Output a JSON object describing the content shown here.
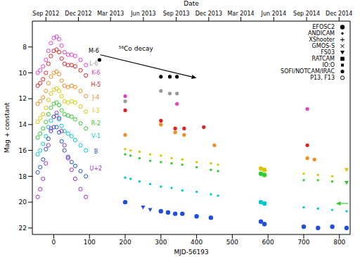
{
  "chart_data": {
    "type": "scatter",
    "xlabel": "MJD-56193",
    "ylabel": "Mag + constant",
    "x2label": "Date",
    "xlim": [
      -60,
      830
    ],
    "xticks": [
      0,
      100,
      200,
      300,
      400,
      500,
      600,
      700,
      800
    ],
    "ylim": [
      22.5,
      6
    ],
    "yticks": [
      8,
      10,
      12,
      14,
      16,
      18,
      20,
      22
    ],
    "x2ticks": [
      {
        "value": -22,
        "label": "Sep 2012"
      },
      {
        "value": 69,
        "label": "Dec 2012"
      },
      {
        "value": 159,
        "label": "Mar 2013"
      },
      {
        "value": 251,
        "label": "Jun 2013"
      },
      {
        "value": 343,
        "label": "Sep 2013"
      },
      {
        "value": 434,
        "label": "Dec 2013"
      },
      {
        "value": 524,
        "label": "Mar 2014"
      },
      {
        "value": 616,
        "label": "Jun 2014"
      },
      {
        "value": 708,
        "label": "Sep 2014"
      },
      {
        "value": 799,
        "label": "Dec 2014"
      }
    ],
    "legend": "upper right",
    "instruments": [
      {
        "name": "EFOSC2",
        "marker": "circle"
      },
      {
        "name": "ANDICAM",
        "marker": "dot"
      },
      {
        "name": "XShooter",
        "marker": "plus"
      },
      {
        "name": "GMOS-S",
        "marker": "cross"
      },
      {
        "name": "FS03",
        "marker": "triangle_down"
      },
      {
        "name": "RATCAM",
        "marker": "square"
      },
      {
        "name": "IO:O",
        "marker": "small_square"
      },
      {
        "name": "SOFI/NOTCAM/IRAC",
        "marker": "small_circle"
      },
      {
        "name": "P13, F13",
        "marker": "open_circle"
      }
    ],
    "annotations": [
      {
        "text": "⁵⁶Co decay",
        "x": 230,
        "y": 8.1
      }
    ],
    "arrows": [
      {
        "x1": 130,
        "y1": 8.6,
        "x2": 400,
        "y2": 10.4,
        "color": "#000000"
      },
      {
        "x1": 825,
        "y1": 20.1,
        "x2": 790,
        "y2": 20.1,
        "color": "#2ecc2e"
      }
    ],
    "series": [
      {
        "name": "M-6",
        "color": "#000000",
        "label_at": [
          112,
          8.3
        ],
        "x": [
          128,
          300,
          325,
          345
        ],
        "y": [
          9.0,
          10.3,
          10.3,
          10.3
        ],
        "instrument": [
          "SOFI/NOTCAM/IRAC",
          "SOFI/NOTCAM/IRAC",
          "SOFI/NOTCAM/IRAC",
          "SOFI/NOTCAM/IRAC"
        ]
      },
      {
        "name": "L-6",
        "color": "#999999",
        "label_at": [
          112,
          9.3
        ],
        "x": [
          200,
          300,
          325,
          345
        ],
        "y": [
          12.2,
          11.4,
          11.6,
          11.6
        ],
        "instrument": [
          "SOFI/NOTCAM/IRAC",
          "SOFI/NOTCAM/IRAC",
          "SOFI/NOTCAM/IRAC",
          "SOFI/NOTCAM/IRAC"
        ]
      },
      {
        "name": "K-6",
        "color": "#e23ecb",
        "label_at": [
          118,
          10.0
        ],
        "x": [
          -45,
          -38,
          -30,
          -22,
          -15,
          -8,
          0,
          8,
          15,
          22,
          30,
          40,
          50,
          60,
          75,
          90,
          200,
          345,
          710
        ],
        "y": [
          10.0,
          9.8,
          9.5,
          9.0,
          8.3,
          7.7,
          7.3,
          7.2,
          7.4,
          7.9,
          8.4,
          8.6,
          8.6,
          8.7,
          9.0,
          9.4,
          11.8,
          12.4,
          12.8
        ],
        "instrument": [
          "P13, F13",
          "P13, F13",
          "P13, F13",
          "P13, F13",
          "P13, F13",
          "P13, F13",
          "P13, F13",
          "P13, F13",
          "P13, F13",
          "P13, F13",
          "P13, F13",
          "P13, F13",
          "P13, F13",
          "P13, F13",
          "P13, F13",
          "P13, F13",
          "SOFI/NOTCAM/IRAC",
          "SOFI/NOTCAM/IRAC",
          "SOFI/NOTCAM/IRAC"
        ]
      },
      {
        "name": "H-5",
        "color": "#e02020",
        "label_at": [
          118,
          10.9
        ],
        "x": [
          -45,
          -38,
          -30,
          -22,
          -15,
          -8,
          0,
          8,
          15,
          22,
          30,
          40,
          50,
          60,
          75,
          90,
          200,
          300,
          340,
          365,
          420,
          710
        ],
        "y": [
          11.0,
          10.8,
          10.5,
          10.0,
          9.3,
          8.7,
          8.3,
          8.2,
          8.4,
          8.9,
          9.3,
          9.4,
          9.4,
          9.5,
          9.8,
          10.2,
          12.9,
          13.7,
          14.3,
          14.3,
          14.2,
          15.6
        ],
        "instrument": [
          "P13, F13",
          "P13, F13",
          "P13, F13",
          "P13, F13",
          "P13, F13",
          "P13, F13",
          "P13, F13",
          "P13, F13",
          "P13, F13",
          "P13, F13",
          "P13, F13",
          "P13, F13",
          "P13, F13",
          "P13, F13",
          "P13, F13",
          "P13, F13",
          "SOFI/NOTCAM/IRAC",
          "SOFI/NOTCAM/IRAC",
          "SOFI/NOTCAM/IRAC",
          "SOFI/NOTCAM/IRAC",
          "SOFI/NOTCAM/IRAC",
          "SOFI/NOTCAM/IRAC"
        ]
      },
      {
        "name": "J-4",
        "color": "#f08c1e",
        "label_at": [
          118,
          11.9
        ],
        "x": [
          -45,
          -38,
          -30,
          -22,
          -15,
          -8,
          0,
          8,
          15,
          22,
          30,
          40,
          50,
          60,
          75,
          90,
          200,
          300,
          340,
          365,
          450,
          710,
          730
        ],
        "y": [
          12.4,
          12.2,
          11.9,
          11.4,
          10.8,
          10.3,
          10.0,
          9.9,
          10.1,
          10.6,
          11.0,
          11.1,
          11.0,
          11.1,
          11.4,
          11.8,
          14.8,
          14.0,
          14.6,
          14.8,
          15.6,
          16.6,
          16.7
        ],
        "instrument": [
          "P13, F13",
          "P13, F13",
          "P13, F13",
          "P13, F13",
          "P13, F13",
          "P13, F13",
          "P13, F13",
          "P13, F13",
          "P13, F13",
          "P13, F13",
          "P13, F13",
          "P13, F13",
          "P13, F13",
          "P13, F13",
          "P13, F13",
          "P13, F13",
          "SOFI/NOTCAM/IRAC",
          "SOFI/NOTCAM/IRAC",
          "SOFI/NOTCAM/IRAC",
          "SOFI/NOTCAM/IRAC",
          "SOFI/NOTCAM/IRAC",
          "SOFI/NOTCAM/IRAC",
          "SOFI/NOTCAM/IRAC"
        ]
      },
      {
        "name": "I-3",
        "color": "#d4c800",
        "label_at": [
          118,
          12.9
        ],
        "x": [
          -45,
          -38,
          -30,
          -22,
          -15,
          -8,
          0,
          8,
          15,
          22,
          30,
          40,
          50,
          60,
          75,
          90,
          200,
          215,
          240,
          270,
          300,
          330,
          360,
          400,
          440,
          460,
          580,
          590,
          700,
          740,
          780,
          820
        ],
        "y": [
          13.8,
          13.5,
          13.2,
          12.7,
          12.1,
          11.6,
          11.3,
          11.2,
          11.4,
          11.8,
          12.2,
          12.3,
          12.2,
          12.3,
          12.6,
          13.0,
          15.9,
          16.0,
          16.1,
          16.3,
          16.4,
          16.6,
          16.7,
          16.9,
          17.0,
          17.1,
          17.4,
          17.5,
          17.8,
          17.9,
          18.0,
          17.5
        ],
        "instrument": [
          "P13, F13",
          "P13, F13",
          "P13, F13",
          "P13, F13",
          "P13, F13",
          "P13, F13",
          "P13, F13",
          "P13, F13",
          "P13, F13",
          "P13, F13",
          "P13, F13",
          "P13, F13",
          "P13, F13",
          "P13, F13",
          "P13, F13",
          "P13, F13",
          "ANDICAM",
          "ANDICAM",
          "ANDICAM",
          "ANDICAM",
          "ANDICAM",
          "ANDICAM",
          "ANDICAM",
          "ANDICAM",
          "ANDICAM",
          "ANDICAM",
          "EFOSC2",
          "EFOSC2",
          "ANDICAM",
          "ANDICAM",
          "ANDICAM",
          "FS03"
        ]
      },
      {
        "name": "R-2",
        "color": "#2ecc2e",
        "label_at": [
          118,
          13.9
        ],
        "x": [
          -45,
          -38,
          -30,
          -22,
          -15,
          -8,
          0,
          8,
          15,
          22,
          30,
          40,
          50,
          60,
          75,
          90,
          200,
          215,
          240,
          270,
          300,
          330,
          360,
          400,
          440,
          460,
          580,
          590,
          700,
          740,
          780,
          820
        ],
        "y": [
          15.0,
          14.7,
          14.3,
          13.8,
          13.2,
          12.7,
          12.4,
          12.3,
          12.5,
          12.9,
          13.2,
          13.3,
          13.4,
          13.6,
          13.9,
          14.3,
          16.3,
          16.4,
          16.6,
          16.8,
          16.9,
          17.0,
          17.1,
          17.3,
          17.5,
          17.6,
          17.8,
          17.9,
          18.3,
          18.3,
          18.4,
          18.5
        ],
        "instrument": [
          "P13, F13",
          "P13, F13",
          "P13, F13",
          "P13, F13",
          "P13, F13",
          "P13, F13",
          "P13, F13",
          "P13, F13",
          "P13, F13",
          "P13, F13",
          "P13, F13",
          "P13, F13",
          "P13, F13",
          "P13, F13",
          "P13, F13",
          "P13, F13",
          "ANDICAM",
          "ANDICAM",
          "ANDICAM",
          "ANDICAM",
          "ANDICAM",
          "ANDICAM",
          "ANDICAM",
          "ANDICAM",
          "ANDICAM",
          "ANDICAM",
          "EFOSC2",
          "EFOSC2",
          "ANDICAM",
          "ANDICAM",
          "ANDICAM",
          "FS03"
        ]
      },
      {
        "name": "V-1",
        "color": "#00c8d2",
        "label_at": [
          118,
          14.9
        ],
        "x": [
          -45,
          -38,
          -30,
          -22,
          -15,
          -8,
          0,
          8,
          15,
          22,
          30,
          40,
          50,
          60,
          75,
          90,
          200,
          215,
          240,
          270,
          300,
          330,
          360,
          400,
          440,
          460,
          580,
          590,
          700,
          740,
          780,
          820
        ],
        "y": [
          16.3,
          16.0,
          15.5,
          14.9,
          14.2,
          13.7,
          13.4,
          13.3,
          13.6,
          14.1,
          14.5,
          14.7,
          14.9,
          15.2,
          15.6,
          16.0,
          18.1,
          18.2,
          18.4,
          18.6,
          18.8,
          18.9,
          19.1,
          19.2,
          19.4,
          19.5,
          20.0,
          20.1,
          20.4,
          20.5,
          20.6,
          20.7
        ],
        "instrument": [
          "P13, F13",
          "P13, F13",
          "P13, F13",
          "P13, F13",
          "P13, F13",
          "P13, F13",
          "P13, F13",
          "P13, F13",
          "P13, F13",
          "P13, F13",
          "P13, F13",
          "P13, F13",
          "P13, F13",
          "P13, F13",
          "P13, F13",
          "P13, F13",
          "ANDICAM",
          "ANDICAM",
          "ANDICAM",
          "ANDICAM",
          "ANDICAM",
          "ANDICAM",
          "ANDICAM",
          "ANDICAM",
          "ANDICAM",
          "ANDICAM",
          "EFOSC2",
          "EFOSC2",
          "ANDICAM",
          "ANDICAM",
          "ANDICAM",
          "ANDICAM"
        ]
      },
      {
        "name": "B",
        "color": "#1f4fe0",
        "label_at": [
          118,
          16.1
        ],
        "x": [
          -45,
          -38,
          -30,
          -22,
          -15,
          -8,
          0,
          8,
          15,
          22,
          30,
          40,
          50,
          60,
          75,
          90,
          200,
          250,
          270,
          300,
          320,
          340,
          360,
          400,
          440,
          580,
          590,
          700,
          740,
          780,
          820
        ],
        "y": [
          17.7,
          17.3,
          16.7,
          15.9,
          15.1,
          14.5,
          14.2,
          14.2,
          14.6,
          15.3,
          16.0,
          16.5,
          16.9,
          17.2,
          17.6,
          18.0,
          20.0,
          20.4,
          20.6,
          20.7,
          20.8,
          20.9,
          20.9,
          21.1,
          21.2,
          21.5,
          21.7,
          21.9,
          22.0,
          21.9,
          22.0
        ],
        "instrument": [
          "P13, F13",
          "P13, F13",
          "P13, F13",
          "P13, F13",
          "P13, F13",
          "P13, F13",
          "P13, F13",
          "P13, F13",
          "P13, F13",
          "P13, F13",
          "P13, F13",
          "P13, F13",
          "P13, F13",
          "P13, F13",
          "P13, F13",
          "P13, F13",
          "EFOSC2",
          "FS03",
          "FS03",
          "EFOSC2",
          "EFOSC2",
          "EFOSC2",
          "EFOSC2",
          "EFOSC2",
          "EFOSC2",
          "EFOSC2",
          "EFOSC2",
          "EFOSC2",
          "EFOSC2",
          "EFOSC2",
          "EFOSC2"
        ]
      },
      {
        "name": "U+2",
        "color": "#9b30d0",
        "label_at": [
          118,
          17.4
        ],
        "x": [
          -45,
          -38,
          -30,
          -22,
          -15,
          -8,
          0,
          8,
          15,
          22,
          30,
          40,
          50,
          60,
          75,
          90
        ],
        "y": [
          19.6,
          19.0,
          18.2,
          17.0,
          15.6,
          14.3,
          13.4,
          13.1,
          13.5,
          14.5,
          15.6,
          16.6,
          17.5,
          18.2,
          19.0,
          19.6
        ],
        "instrument": [
          "P13, F13",
          "P13, F13",
          "P13, F13",
          "P13, F13",
          "P13, F13",
          "P13, F13",
          "P13, F13",
          "P13, F13",
          "P13, F13",
          "P13, F13",
          "P13, F13",
          "P13, F13",
          "P13, F13",
          "P13, F13",
          "P13, F13",
          "P13, F13"
        ]
      }
    ]
  }
}
